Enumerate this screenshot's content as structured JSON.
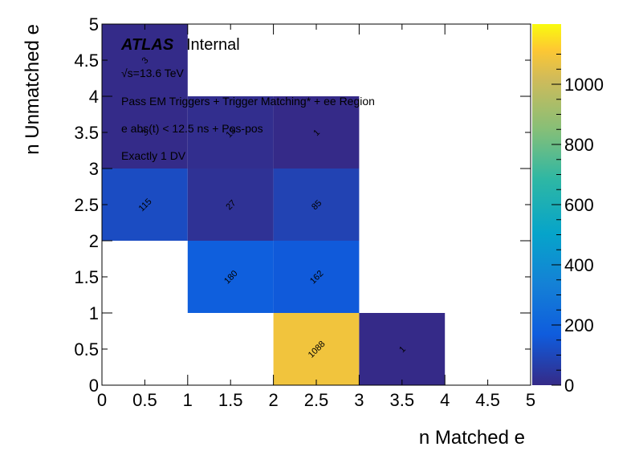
{
  "chart_data": {
    "type": "heatmap",
    "xlabel": "n Matched e",
    "ylabel": "n Unmatched e",
    "xlim": [
      0,
      5
    ],
    "ylim": [
      0,
      5
    ],
    "x_ticks": [
      "0",
      "0.5",
      "1",
      "1.5",
      "2",
      "2.5",
      "3",
      "3.5",
      "4",
      "4.5",
      "5"
    ],
    "y_ticks": [
      "0",
      "0.5",
      "1",
      "1.5",
      "2",
      "2.5",
      "3",
      "3.5",
      "4",
      "4.5",
      "5"
    ],
    "colorbar": {
      "range": [
        0,
        1200
      ],
      "ticks": [
        "0",
        "200",
        "400",
        "600",
        "800",
        "1000"
      ],
      "colormap": "parula"
    },
    "cells": [
      {
        "x": [
          0,
          1
        ],
        "y": [
          2,
          3
        ],
        "value": 115,
        "label": "115"
      },
      {
        "x": [
          1,
          2
        ],
        "y": [
          2,
          3
        ],
        "value": 27,
        "label": "27"
      },
      {
        "x": [
          2,
          3
        ],
        "y": [
          2,
          3
        ],
        "value": 85,
        "label": "85"
      },
      {
        "x": [
          1,
          2
        ],
        "y": [
          1,
          2
        ],
        "value": 180,
        "label": "180"
      },
      {
        "x": [
          2,
          3
        ],
        "y": [
          1,
          2
        ],
        "value": 162,
        "label": "162"
      },
      {
        "x": [
          2,
          3
        ],
        "y": [
          0,
          1
        ],
        "value": 1088,
        "label": "1088"
      },
      {
        "x": [
          3,
          4
        ],
        "y": [
          0,
          1
        ],
        "value": 1,
        "label": "1"
      },
      {
        "x": [
          0,
          1
        ],
        "y": [
          4,
          5
        ],
        "value": 3,
        "label": "3"
      },
      {
        "x": [
          0,
          1
        ],
        "y": [
          3,
          4
        ],
        "value": 3,
        "label": "3"
      },
      {
        "x": [
          1,
          2
        ],
        "y": [
          3,
          4
        ],
        "value": 13,
        "label": "13"
      },
      {
        "x": [
          2,
          3
        ],
        "y": [
          3,
          4
        ],
        "value": 1,
        "label": "1"
      }
    ],
    "annotations": {
      "atlas": "ATLAS",
      "internal": "Internal",
      "energy": "√s=13.6 TeV",
      "line1": "Pass EM Triggers + Trigger Matching* + ee Region",
      "line2": "e abs(t) < 12.5 ns + Pos-pos",
      "line3": "Exactly 1 DV"
    }
  }
}
